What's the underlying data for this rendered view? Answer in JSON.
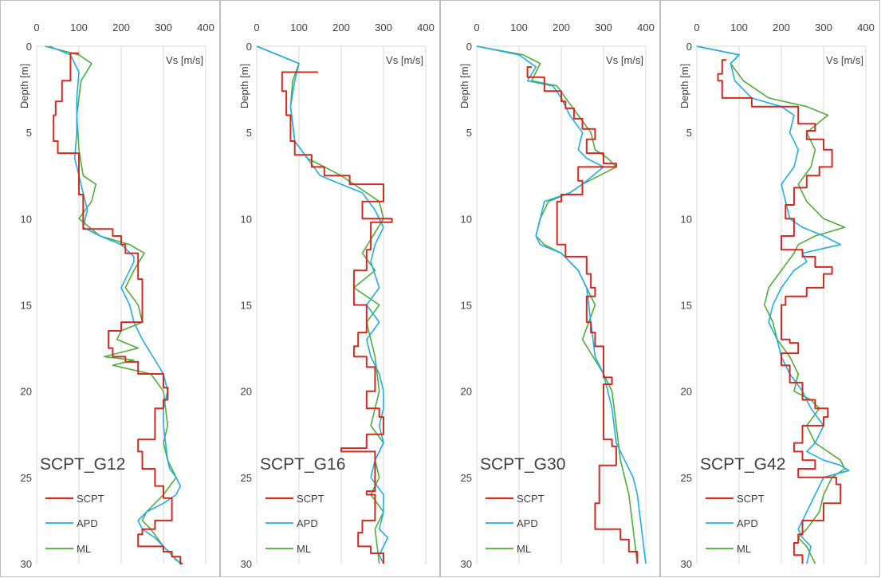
{
  "figure": {
    "shared_x_label": "Vs [m/s]",
    "shared_y_label": "Depth [m]",
    "x_ticks": [
      0,
      100,
      200,
      300,
      400
    ],
    "y_ticks": [
      0,
      5,
      10,
      15,
      20,
      25,
      30
    ]
  },
  "colors": {
    "SCPT": "#d42a20",
    "APD": "#1eaee8",
    "ML": "#4fad3a",
    "grid": "#d9d9d9",
    "frame": "#bfbfbf",
    "text": "#404040"
  },
  "chart_data": [
    {
      "type": "line",
      "title": "SCPT_G12",
      "xlabel": "Vs [m/s]",
      "ylabel": "Depth [m]",
      "xlim": [
        0,
        400
      ],
      "ylim": [
        30,
        0
      ],
      "grid": true,
      "legend": "bottom-left",
      "series": [
        {
          "name": "SCPT",
          "kind": "step",
          "x": [
            100,
            80,
            60,
            45,
            40,
            50,
            100,
            100,
            110,
            180,
            200,
            210,
            240,
            250,
            200,
            170,
            180,
            210,
            240,
            300,
            310,
            300,
            280,
            240,
            250,
            280,
            300,
            320,
            280,
            250,
            240,
            300,
            320,
            340,
            345
          ],
          "y": [
            0.4,
            2,
            3.2,
            4,
            5.5,
            6.2,
            7,
            8.6,
            10.6,
            11,
            11.5,
            12,
            13.5,
            16,
            16.5,
            17.5,
            18,
            18.3,
            19,
            19.8,
            20.5,
            21,
            22.8,
            23.5,
            24.5,
            25.5,
            26.2,
            27.5,
            28,
            28.3,
            29,
            29.3,
            29.6,
            30,
            30
          ]
        },
        {
          "name": "APD",
          "x": [
            30,
            80,
            100,
            95,
            95,
            90,
            100,
            110,
            120,
            110,
            150,
            200,
            230,
            230,
            220,
            200,
            220,
            230,
            250,
            300,
            310,
            300,
            300,
            305,
            310,
            315,
            330,
            340,
            330,
            300,
            260,
            240,
            250,
            280,
            300,
            320,
            330,
            345
          ],
          "y": [
            0,
            0.5,
            1.5,
            3,
            5,
            6.5,
            7.5,
            8.5,
            9.5,
            10.5,
            11,
            11.5,
            12.2,
            12.5,
            13,
            14,
            15,
            16,
            17,
            19,
            20,
            21,
            22,
            23,
            24,
            24.5,
            25,
            25.5,
            26,
            26.5,
            27,
            27.5,
            28,
            28.5,
            29,
            29.5,
            29.8,
            30
          ]
        },
        {
          "name": "ML",
          "x": [
            20,
            100,
            130,
            105,
            95,
            100,
            110,
            140,
            130,
            100,
            150,
            220,
            255,
            230,
            210,
            240,
            250,
            200,
            190,
            240,
            160,
            230,
            180,
            270,
            300,
            310,
            300,
            310,
            320,
            330,
            300,
            260,
            250,
            270,
            300,
            320,
            340
          ],
          "y": [
            0,
            0.5,
            1,
            2,
            4,
            6,
            7.5,
            8,
            9,
            10,
            11,
            11.5,
            12,
            13,
            14,
            15,
            16,
            16.5,
            17,
            17.5,
            18,
            18.2,
            18.5,
            19,
            20,
            22,
            23,
            24,
            24.5,
            25,
            26,
            27,
            27.5,
            28,
            29,
            29.5,
            30
          ]
        }
      ]
    },
    {
      "type": "line",
      "title": "SCPT_G16",
      "xlabel": "Vs [m/s]",
      "ylabel": "Depth [m]",
      "xlim": [
        0,
        400
      ],
      "ylim": [
        30,
        0
      ],
      "grid": true,
      "legend": "bottom-left",
      "series": [
        {
          "name": "SCPT",
          "kind": "step",
          "x": [
            145,
            60,
            70,
            80,
            90,
            130,
            160,
            220,
            300,
            300,
            250,
            320,
            270,
            260,
            230,
            260,
            240,
            230,
            260,
            280,
            260,
            290,
            300,
            260,
            200,
            280,
            260,
            280,
            250,
            240,
            270,
            300
          ],
          "y": [
            1.5,
            2.6,
            4,
            5.5,
            6.3,
            7,
            7.5,
            8,
            8.8,
            9,
            10,
            10.2,
            11.8,
            13,
            15,
            16.6,
            17.4,
            18,
            18.6,
            20,
            21,
            21.5,
            22.5,
            23.3,
            23.5,
            25.8,
            26,
            27.5,
            28.2,
            29,
            29.4,
            30
          ]
        },
        {
          "name": "APD",
          "x": [
            0,
            100,
            90,
            80,
            90,
            120,
            150,
            200,
            250,
            280,
            300,
            280,
            270,
            290,
            260,
            290,
            260,
            270,
            290,
            300,
            300,
            290,
            300,
            280,
            270,
            300,
            300,
            290,
            310,
            290,
            300
          ],
          "y": [
            0,
            1,
            2,
            3.5,
            5.5,
            6.5,
            7.5,
            8,
            8.5,
            9.5,
            10.5,
            11.5,
            12.5,
            14,
            15,
            16,
            17,
            18,
            19,
            20,
            21,
            22,
            23,
            24,
            25,
            26,
            27,
            28,
            28.5,
            29.5,
            30
          ]
        },
        {
          "name": "ML",
          "x": [
            0,
            100,
            85,
            80,
            90,
            120,
            160,
            200,
            230,
            260,
            290,
            300,
            250,
            280,
            230,
            290,
            260,
            270,
            280,
            290,
            270,
            300,
            280,
            290,
            270,
            300,
            280,
            290
          ],
          "y": [
            0,
            1,
            2,
            3.5,
            5.5,
            6.5,
            7,
            7.5,
            8,
            8.5,
            9,
            10,
            12,
            13,
            14,
            15,
            16,
            17,
            18,
            20,
            22,
            23,
            24,
            25,
            26,
            27,
            28,
            30
          ]
        }
      ]
    },
    {
      "type": "line",
      "title": "SCPT_G30",
      "xlabel": "Vs [m/s]",
      "ylabel": "Depth [m]",
      "xlim": [
        0,
        400
      ],
      "ylim": [
        30,
        0
      ],
      "grid": true,
      "legend": "bottom-left",
      "series": [
        {
          "name": "SCPT",
          "kind": "step",
          "x": [
            130,
            120,
            160,
            200,
            210,
            230,
            250,
            280,
            260,
            300,
            330,
            240,
            250,
            200,
            190,
            210,
            260,
            270,
            280,
            260,
            270,
            280,
            300,
            320,
            300,
            320,
            330,
            290,
            280,
            340,
            360,
            380
          ],
          "y": [
            1.2,
            1.8,
            2.6,
            3.2,
            3.6,
            4.2,
            4.8,
            5.4,
            6.2,
            6.8,
            7,
            7.8,
            8.6,
            9,
            11.5,
            12.2,
            13.2,
            14,
            14.5,
            16,
            16.6,
            17.4,
            19.2,
            19.6,
            22.8,
            23.2,
            24.3,
            26.5,
            28,
            28.6,
            29.3,
            30
          ]
        },
        {
          "name": "APD",
          "x": [
            0,
            100,
            140,
            120,
            180,
            200,
            220,
            250,
            240,
            260,
            300,
            250,
            220,
            160,
            150,
            140,
            150,
            200,
            240,
            260,
            270,
            280,
            300,
            320,
            330,
            350,
            370,
            380,
            390,
            400
          ],
          "y": [
            0,
            0.5,
            1.2,
            2,
            2.3,
            3,
            4,
            5,
            6,
            6.5,
            7,
            8,
            8.5,
            9,
            10,
            11,
            11.5,
            12,
            13,
            14,
            16,
            18,
            19,
            21,
            23,
            24,
            25,
            26,
            28,
            30
          ]
        },
        {
          "name": "ML",
          "x": [
            0,
            110,
            150,
            130,
            190,
            210,
            240,
            270,
            280,
            310,
            330,
            250,
            220,
            170,
            150,
            140,
            160,
            200,
            240,
            260,
            280,
            250,
            300,
            320,
            330,
            340,
            350,
            360,
            370,
            380
          ],
          "y": [
            0,
            0.5,
            1,
            2,
            2.3,
            3,
            4,
            5,
            6,
            6.5,
            7,
            8,
            8.5,
            9,
            10,
            11,
            11.5,
            12,
            13,
            14,
            15,
            17,
            19,
            20,
            22,
            24,
            25,
            26,
            28,
            30
          ]
        }
      ]
    },
    {
      "type": "line",
      "title": "SCPT_G42",
      "xlabel": "Vs [m/s]",
      "ylabel": "Depth [m]",
      "xlim": [
        0,
        400
      ],
      "ylim": [
        30,
        0
      ],
      "grid": true,
      "legend": "bottom-left",
      "series": [
        {
          "name": "SCPT",
          "kind": "step",
          "x": [
            70,
            60,
            50,
            60,
            130,
            240,
            280,
            260,
            300,
            320,
            290,
            260,
            230,
            210,
            230,
            200,
            250,
            280,
            320,
            300,
            260,
            210,
            200,
            220,
            240,
            200,
            220,
            250,
            280,
            310,
            300,
            250,
            230,
            250,
            280,
            240,
            330,
            340,
            300,
            250,
            240,
            230,
            250
          ],
          "y": [
            0.8,
            1.6,
            2,
            3,
            3.5,
            4.5,
            4.9,
            5.4,
            6,
            7,
            7.5,
            8.2,
            9.2,
            10,
            11,
            11.8,
            12.2,
            12.8,
            13.2,
            14,
            14.5,
            15,
            17,
            17.2,
            17.8,
            18.5,
            19.5,
            20.5,
            21,
            21.5,
            22,
            23,
            23.5,
            24,
            24.5,
            25,
            25.4,
            26.5,
            27.5,
            28.3,
            28.8,
            29.5,
            30
          ]
        },
        {
          "name": "APD",
          "x": [
            0,
            100,
            80,
            90,
            130,
            200,
            230,
            220,
            240,
            230,
            200,
            210,
            220,
            250,
            300,
            340,
            250,
            260,
            230,
            200,
            180,
            170,
            190,
            200,
            220,
            250,
            270,
            300,
            280,
            260,
            300,
            340,
            360,
            300,
            280,
            260,
            240,
            250,
            270,
            260
          ],
          "y": [
            0,
            0.5,
            1,
            2,
            3,
            3.5,
            4,
            5,
            6,
            7,
            8,
            9,
            10,
            10.5,
            11,
            11.5,
            12,
            12.5,
            13,
            14,
            15,
            16,
            17,
            18,
            19,
            20,
            21,
            22,
            23,
            23.5,
            24,
            24.3,
            24.6,
            25,
            26,
            27,
            28,
            28.5,
            29,
            30
          ]
        },
        {
          "name": "ML",
          "x": [
            0,
            100,
            80,
            110,
            170,
            260,
            310,
            260,
            280,
            270,
            240,
            260,
            300,
            350,
            280,
            240,
            230,
            200,
            170,
            160,
            180,
            190,
            220,
            240,
            230,
            270,
            290,
            260,
            280,
            340,
            350,
            320,
            300,
            290,
            260,
            240,
            260,
            280
          ],
          "y": [
            0,
            0.5,
            1,
            2,
            3,
            3.5,
            4,
            5,
            6,
            7,
            8,
            9,
            10,
            10.5,
            11,
            11.5,
            12,
            13,
            14,
            15,
            16,
            17,
            18,
            19,
            20,
            20.5,
            21,
            22,
            23,
            24,
            24.5,
            25,
            26,
            27,
            28,
            28.5,
            29,
            30
          ]
        }
      ]
    }
  ]
}
